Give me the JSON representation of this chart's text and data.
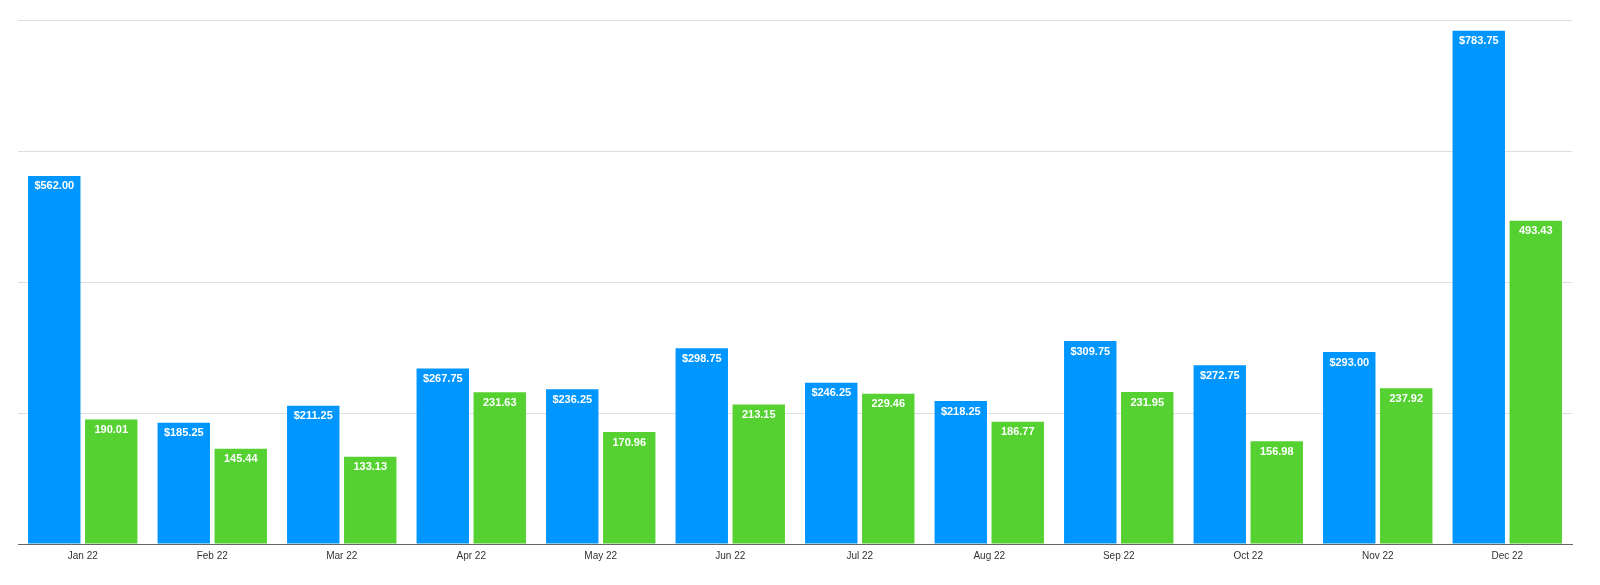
{
  "chart_data": {
    "type": "bar",
    "categories": [
      "Jan 22",
      "Feb 22",
      "Mar 22",
      "Apr 22",
      "May 22",
      "Jun 22",
      "Jul 22",
      "Aug 22",
      "Sep 22",
      "Oct 22",
      "Nov 22",
      "Dec 22"
    ],
    "series": [
      {
        "color": "#0096ff",
        "values": [
          562.0,
          185.25,
          211.25,
          267.75,
          236.25,
          298.75,
          246.25,
          218.25,
          309.75,
          272.75,
          293.0,
          783.75
        ],
        "value_labels": [
          "$562.00",
          "$185.25",
          "$211.25",
          "$267.75",
          "$236.25",
          "$298.75",
          "$246.25",
          "$218.25",
          "$309.75",
          "$272.75",
          "$293.00",
          "$783.75"
        ]
      },
      {
        "color": "#55d232",
        "values": [
          190.01,
          145.44,
          133.13,
          231.63,
          170.96,
          213.15,
          229.46,
          186.77,
          231.95,
          156.98,
          237.92,
          493.43
        ],
        "value_labels": [
          "190.01",
          "145.44",
          "133.13",
          "231.63",
          "170.96",
          "213.15",
          "229.46",
          "186.77",
          "231.95",
          "156.98",
          "237.92",
          "493.43"
        ]
      }
    ],
    "ylim": [
      0,
      800
    ],
    "yticks": [
      {
        "value": 0,
        "label": null
      },
      {
        "value": 200,
        "label": null
      },
      {
        "value": 400,
        "label": null
      },
      {
        "value": 600,
        "label": null
      },
      {
        "value": 800,
        "label": null
      }
    ],
    "tick_labels": "x",
    "grid": "y",
    "legend": false
  }
}
